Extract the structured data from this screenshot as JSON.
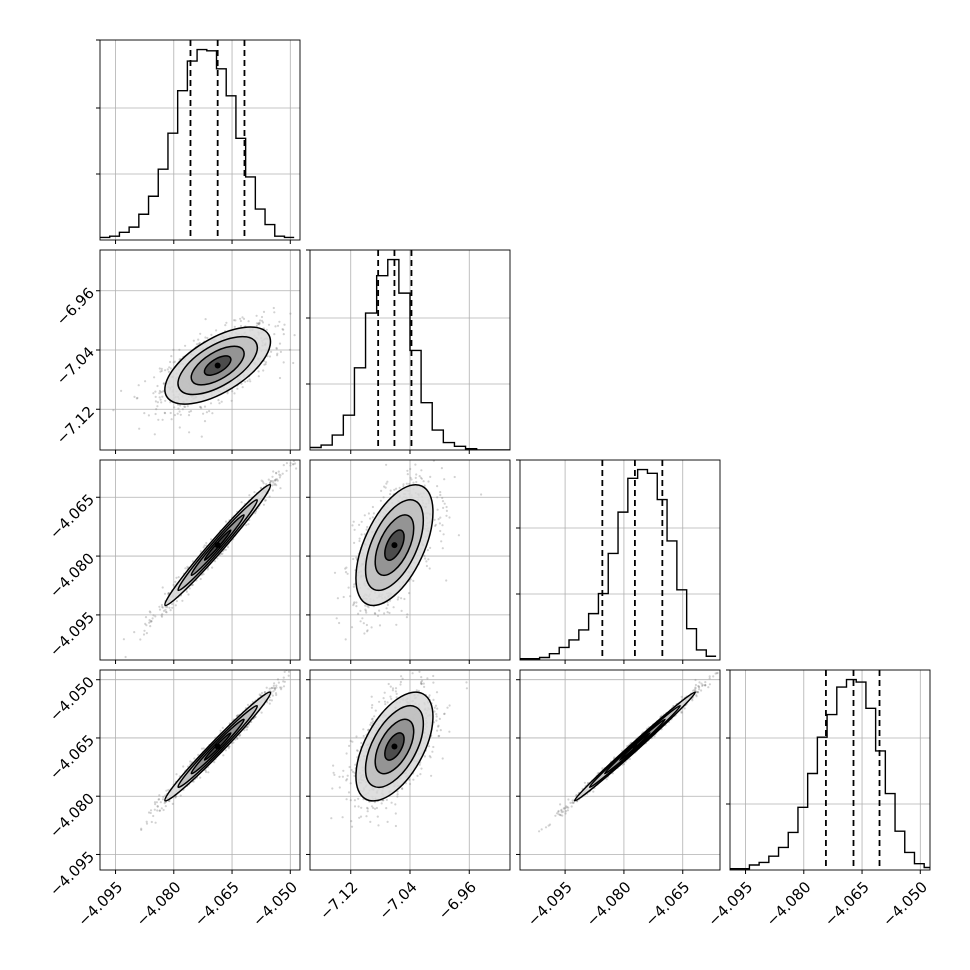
{
  "chart_data": {
    "type": "corner",
    "title": "",
    "parameters": [
      "",
      "",
      "",
      ""
    ],
    "x_ranges": [
      [
        -4.099,
        -4.0475
      ],
      [
        -7.175,
        -6.905
      ],
      [
        -4.1065,
        -4.0555
      ],
      [
        -4.099,
        -4.0475
      ]
    ],
    "y_ranges": [
      null,
      [
        -7.175,
        -6.905
      ],
      [
        -4.1065,
        -4.0555
      ],
      [
        -4.099,
        -4.0475
      ]
    ],
    "x_ticks": [
      {
        "values": [
          -4.095,
          -4.08,
          -4.065,
          -4.05
        ],
        "labels": [
          "−4.095",
          "−4.080",
          "−4.065",
          "−4.050"
        ]
      },
      {
        "values": [
          -7.12,
          -7.04,
          -6.96
        ],
        "labels": [
          "−7.12",
          "−7.04",
          "−6.96"
        ]
      },
      {
        "values": [
          -4.095,
          -4.08,
          -4.065
        ],
        "labels": [
          "−4.095",
          "−4.080",
          "−4.065"
        ]
      },
      {
        "values": [
          -4.095,
          -4.08,
          -4.065,
          -4.05
        ],
        "labels": [
          "−4.095",
          "−4.080",
          "−4.065",
          "−4.050"
        ]
      }
    ],
    "y_ticks": [
      null,
      {
        "values": [
          -6.96,
          -7.04,
          -7.12
        ],
        "labels": [
          "−6.96",
          "−7.04",
          "−7.12"
        ]
      },
      {
        "values": [
          -4.065,
          -4.08,
          -4.095
        ],
        "labels": [
          "−4.065",
          "−4.080",
          "−4.095"
        ]
      },
      {
        "values": [
          -4.05,
          -4.065,
          -4.08,
          -4.095
        ],
        "labels": [
          "−4.050",
          "−4.065",
          "−4.080",
          "−4.095"
        ]
      }
    ],
    "quantiles": [
      [
        -4.0757,
        -4.0687,
        -4.0618
      ],
      [
        -7.083,
        -7.061,
        -7.038
      ],
      [
        -4.0855,
        -4.0772,
        -4.0702
      ],
      [
        -4.0743,
        -4.0672,
        -4.0605
      ]
    ],
    "histograms": [
      {
        "bin_edges": [
          -4.099,
          -4.0965,
          -4.094,
          -4.0915,
          -4.089,
          -4.0865,
          -4.084,
          -4.0815,
          -4.079,
          -4.0765,
          -4.074,
          -4.0715,
          -4.069,
          -4.0665,
          -4.064,
          -4.0615,
          -4.059,
          -4.0565,
          -4.054,
          -4.0515,
          -4.049
        ],
        "counts": [
          2,
          3,
          6,
          10,
          20,
          34,
          55,
          83,
          116,
          139,
          148,
          147,
          133,
          112,
          79,
          49,
          24,
          12,
          3,
          2
        ]
      },
      {
        "bin_edges": [
          -7.175,
          -7.16,
          -7.145,
          -7.13,
          -7.115,
          -7.1,
          -7.085,
          -7.07,
          -7.055,
          -7.04,
          -7.025,
          -7.01,
          -6.995,
          -6.98,
          -6.965,
          -6.95,
          -6.935,
          -6.92,
          -6.905
        ],
        "counts": [
          2,
          4,
          12,
          28,
          66,
          110,
          140,
          153,
          126,
          80,
          38,
          16,
          6,
          3,
          1,
          0,
          0,
          0
        ]
      },
      {
        "bin_edges": [
          -4.1065,
          -4.104,
          -4.1015,
          -4.099,
          -4.0965,
          -4.094,
          -4.0915,
          -4.089,
          -4.0865,
          -4.084,
          -4.0815,
          -4.079,
          -4.0765,
          -4.074,
          -4.0715,
          -4.069,
          -4.0665,
          -4.064,
          -4.0615,
          -4.059,
          -4.0565
        ],
        "counts": [
          1,
          1,
          2,
          5,
          10,
          16,
          24,
          37,
          53,
          85,
          118,
          145,
          152,
          149,
          128,
          95,
          56,
          25,
          8,
          3
        ]
      },
      {
        "bin_edges": [
          -4.099,
          -4.0965,
          -4.094,
          -4.0915,
          -4.089,
          -4.0865,
          -4.084,
          -4.0815,
          -4.079,
          -4.0765,
          -4.074,
          -4.0715,
          -4.069,
          -4.0665,
          -4.064,
          -4.0615,
          -4.059,
          -4.0565,
          -4.054,
          -4.0515,
          -4.049,
          -4.0475
        ],
        "counts": [
          1,
          1,
          4,
          6,
          11,
          18,
          30,
          50,
          77,
          106,
          124,
          146,
          152,
          150,
          129,
          95,
          61,
          31,
          14,
          5,
          2
        ]
      }
    ],
    "pairs": [
      {
        "row": 1,
        "col": 0,
        "mean": [
          -4.0687,
          -7.061
        ],
        "sd": [
          0.0068,
          0.026
        ],
        "rho": 0.62
      },
      {
        "row": 2,
        "col": 0,
        "mean": [
          -4.0687,
          -4.0772
        ],
        "sd": [
          0.0068,
          0.0077
        ],
        "rho": 0.985
      },
      {
        "row": 2,
        "col": 1,
        "mean": [
          -7.061,
          -4.0772
        ],
        "sd": [
          0.026,
          0.0077
        ],
        "rho": 0.55
      },
      {
        "row": 3,
        "col": 0,
        "mean": [
          -4.0687,
          -4.0672
        ],
        "sd": [
          0.0068,
          0.007
        ],
        "rho": 0.985
      },
      {
        "row": 3,
        "col": 1,
        "mean": [
          -7.061,
          -4.0672
        ],
        "sd": [
          0.026,
          0.007
        ],
        "rho": 0.55
      },
      {
        "row": 3,
        "col": 2,
        "mean": [
          -4.0772,
          -4.0672
        ],
        "sd": [
          0.0077,
          0.007
        ],
        "rho": 0.995
      }
    ],
    "contour_levels_sigma": [
      0.5,
      1.0,
      1.5,
      2.0
    ],
    "grid": true,
    "colors": {
      "hist_line": "#000000",
      "points": "#7f7f7f",
      "grid": "#b0b0b0",
      "frame": "#000000",
      "fill_light": "#d9d9d9",
      "fill_mid": "#8c8c8c",
      "fill_dark": "#404040"
    }
  }
}
